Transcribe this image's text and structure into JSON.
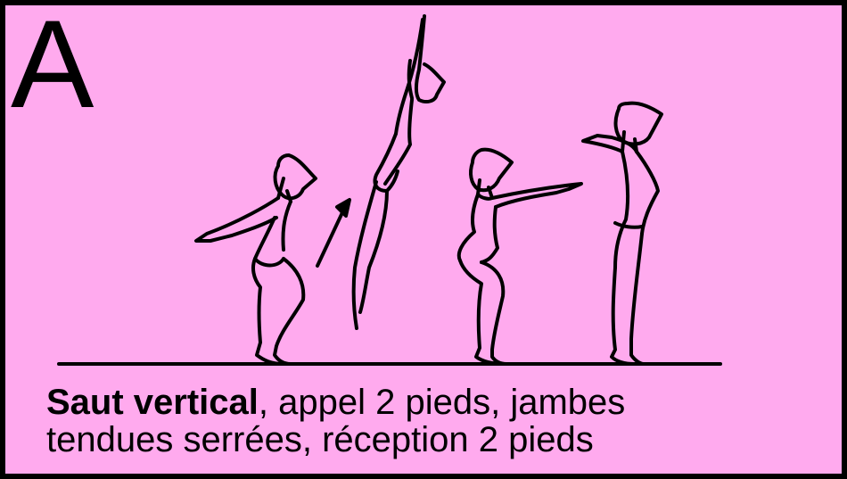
{
  "panel": {
    "letter": "A",
    "background_color": "#ffaaee",
    "line_color": "#000000"
  },
  "caption": {
    "bold": "Saut vertical",
    "line1_rest": ", appel 2 pieds, jambes",
    "line2": "tendues serrées, réception 2 pieds"
  }
}
